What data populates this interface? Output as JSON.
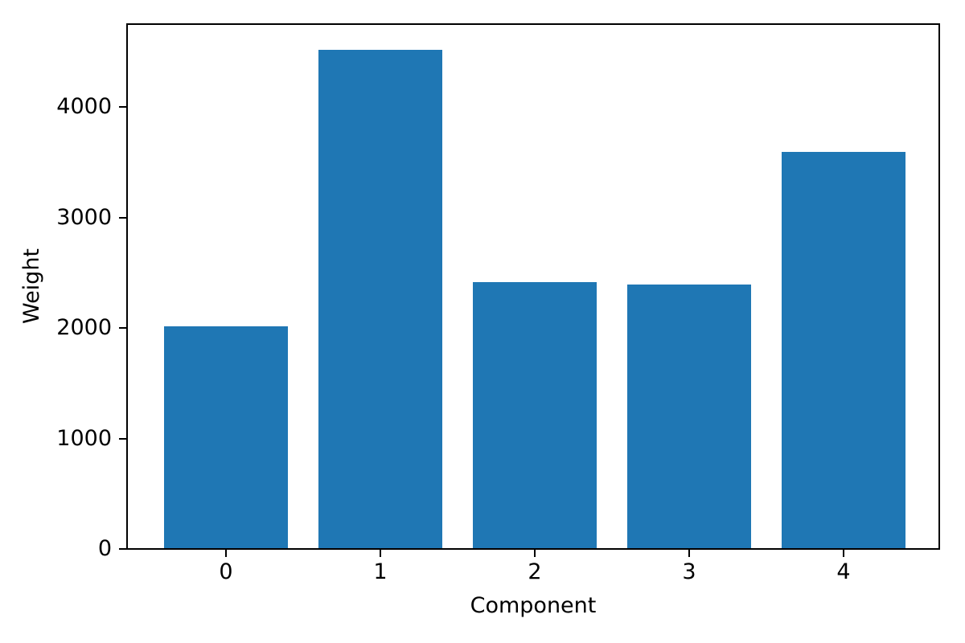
{
  "chart_data": {
    "type": "bar",
    "title": "",
    "xlabel": "Component",
    "ylabel": "Weight",
    "categories": [
      "0",
      "1",
      "2",
      "3",
      "4"
    ],
    "values": [
      2015,
      4525,
      2415,
      2395,
      3595
    ],
    "yticks": [
      0,
      1000,
      2000,
      3000,
      4000
    ],
    "ylim": [
      0,
      4750
    ],
    "xlim": [
      -0.64,
      4.64
    ],
    "bar_width_fraction": 0.8,
    "bar_color": "#1f77b4",
    "axis_color": "#000000",
    "background_color": "#ffffff",
    "grid": false,
    "legend": null
  }
}
